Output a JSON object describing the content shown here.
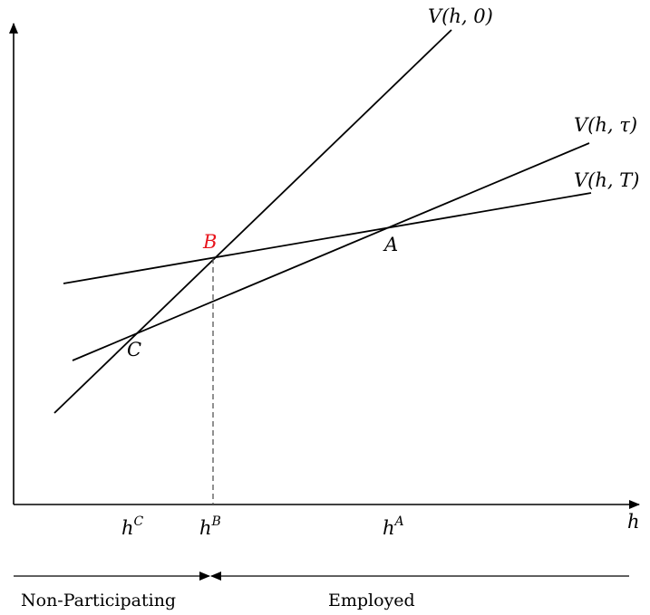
{
  "colors": {
    "ink": "#000000",
    "highlight": "#e8141c",
    "dashed": "#555555"
  },
  "axes": {
    "x_label": "h"
  },
  "curves": [
    {
      "id": "v0",
      "label": "V(h, 0)"
    },
    {
      "id": "vtau",
      "label": "V(h, τ)"
    },
    {
      "id": "vT",
      "label": "V(h, T)"
    }
  ],
  "points": {
    "B": {
      "label": "B",
      "highlight": true
    },
    "A": {
      "label": "A",
      "highlight": false
    },
    "C": {
      "label": "C",
      "highlight": false
    }
  },
  "ticks": [
    {
      "id": "hC",
      "base": "h",
      "sup": "C"
    },
    {
      "id": "hB",
      "base": "h",
      "sup": "B"
    },
    {
      "id": "hA",
      "base": "h",
      "sup": "A"
    }
  ],
  "regions": {
    "left": "Non-Participating",
    "right": "Employed"
  }
}
